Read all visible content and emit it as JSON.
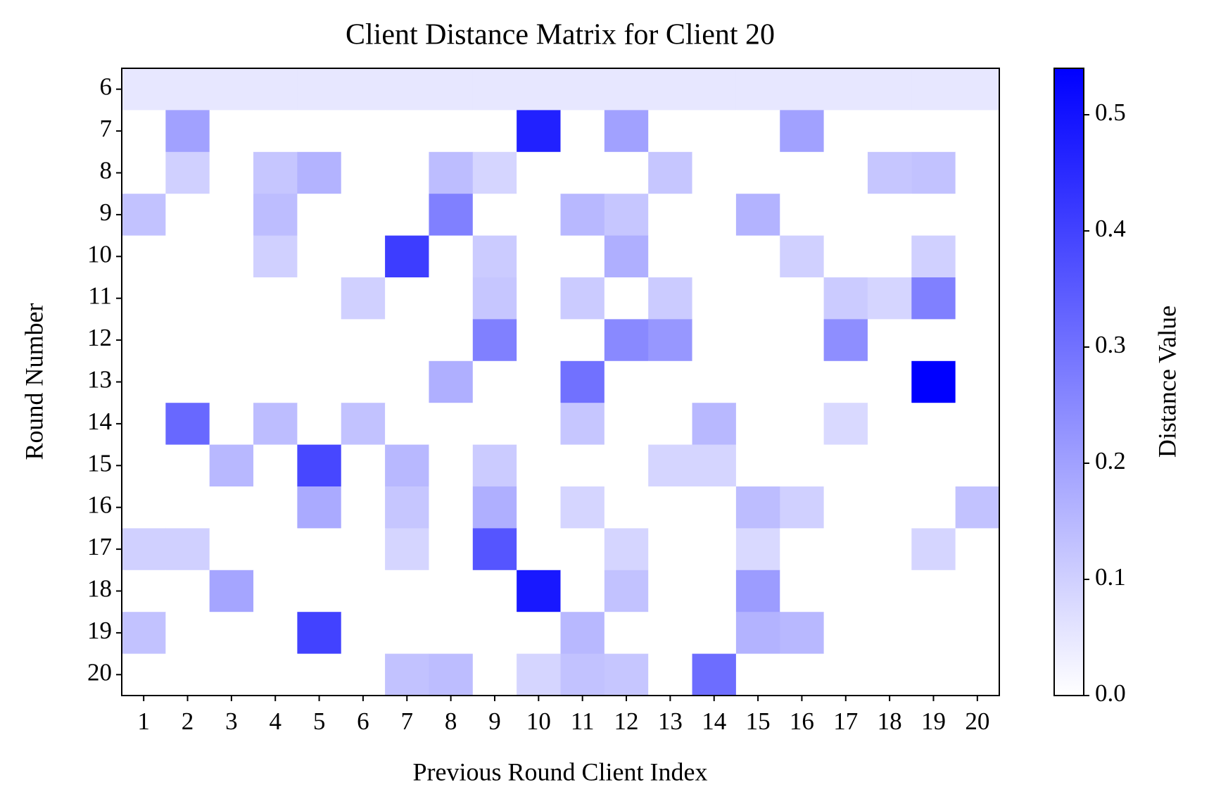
{
  "chart_data": {
    "type": "heatmap",
    "title": "Client Distance Matrix for Client 20",
    "x_label": "Previous Round Client Index",
    "y_label": "Round Number",
    "colorbar_label": "Distance Value",
    "colormap": [
      "#ffffff",
      "#0000ff"
    ],
    "x_categories": [
      "1",
      "2",
      "3",
      "4",
      "5",
      "6",
      "7",
      "8",
      "9",
      "10",
      "11",
      "12",
      "13",
      "14",
      "15",
      "16",
      "17",
      "18",
      "19",
      "20"
    ],
    "y_categories": [
      "6",
      "7",
      "8",
      "9",
      "10",
      "11",
      "12",
      "13",
      "14",
      "15",
      "16",
      "17",
      "18",
      "19",
      "20"
    ],
    "values": [
      [
        0.05,
        0.05,
        0.05,
        0.05,
        0.05,
        0.05,
        0.05,
        0.05,
        0.05,
        0.05,
        0.05,
        0.05,
        0.05,
        0.05,
        0.05,
        0.05,
        0.05,
        0.05,
        0.05,
        0.05
      ],
      [
        0,
        0.2,
        0,
        0,
        0,
        0,
        0,
        0,
        0,
        0.47,
        0,
        0.2,
        0,
        0,
        0,
        0.2,
        0,
        0,
        0,
        0
      ],
      [
        0,
        0.1,
        0,
        0.12,
        0.16,
        0,
        0,
        0.14,
        0.09,
        0,
        0,
        0,
        0.12,
        0,
        0,
        0,
        0,
        0.12,
        0.13,
        0
      ],
      [
        0.13,
        0,
        0,
        0.14,
        0,
        0,
        0,
        0.27,
        0,
        0,
        0.15,
        0.12,
        0,
        0,
        0.16,
        0,
        0,
        0,
        0,
        0
      ],
      [
        0,
        0,
        0,
        0.1,
        0,
        0,
        0.41,
        0,
        0.11,
        0,
        0,
        0.17,
        0,
        0,
        0,
        0.1,
        0,
        0,
        0.1,
        0
      ],
      [
        0,
        0,
        0,
        0,
        0,
        0.1,
        0,
        0,
        0.12,
        0,
        0.11,
        0,
        0.11,
        0,
        0,
        0,
        0.11,
        0.09,
        0.27,
        0
      ],
      [
        0,
        0,
        0,
        0,
        0,
        0,
        0,
        0,
        0.27,
        0,
        0,
        0.25,
        0.22,
        0,
        0,
        0,
        0.24,
        0,
        0,
        0
      ],
      [
        0,
        0,
        0,
        0,
        0,
        0,
        0,
        0.17,
        0,
        0,
        0.3,
        0,
        0,
        0,
        0,
        0,
        0,
        0,
        0.54,
        0
      ],
      [
        0,
        0.32,
        0,
        0.14,
        0,
        0.13,
        0,
        0,
        0,
        0,
        0.12,
        0,
        0,
        0.15,
        0,
        0,
        0.08,
        0,
        0,
        0
      ],
      [
        0,
        0,
        0.15,
        0,
        0.39,
        0,
        0.15,
        0,
        0.11,
        0,
        0,
        0,
        0.09,
        0.09,
        0,
        0,
        0,
        0,
        0,
        0
      ],
      [
        0,
        0,
        0,
        0,
        0.18,
        0,
        0.12,
        0,
        0.17,
        0,
        0.09,
        0,
        0,
        0,
        0.14,
        0.1,
        0,
        0,
        0,
        0.13
      ],
      [
        0.1,
        0.1,
        0,
        0,
        0,
        0,
        0.09,
        0,
        0.36,
        0,
        0,
        0.09,
        0,
        0,
        0.08,
        0,
        0,
        0,
        0.09,
        0
      ],
      [
        0,
        0,
        0.19,
        0,
        0,
        0,
        0,
        0,
        0,
        0.49,
        0,
        0.13,
        0,
        0,
        0.21,
        0,
        0,
        0,
        0,
        0
      ],
      [
        0.13,
        0,
        0,
        0,
        0.4,
        0,
        0,
        0,
        0,
        0,
        0.15,
        0,
        0,
        0,
        0.16,
        0.15,
        0,
        0,
        0,
        0
      ],
      [
        0,
        0,
        0,
        0,
        0,
        0,
        0.13,
        0.14,
        0,
        0.09,
        0.13,
        0.12,
        0,
        0.31,
        0,
        0,
        0,
        0,
        0,
        0
      ]
    ],
    "clim": [
      0,
      0.54
    ],
    "cticks": [
      {
        "value": 0,
        "label": "0.0"
      },
      0.1,
      0.2,
      0.3,
      0.4,
      0.5
    ]
  }
}
